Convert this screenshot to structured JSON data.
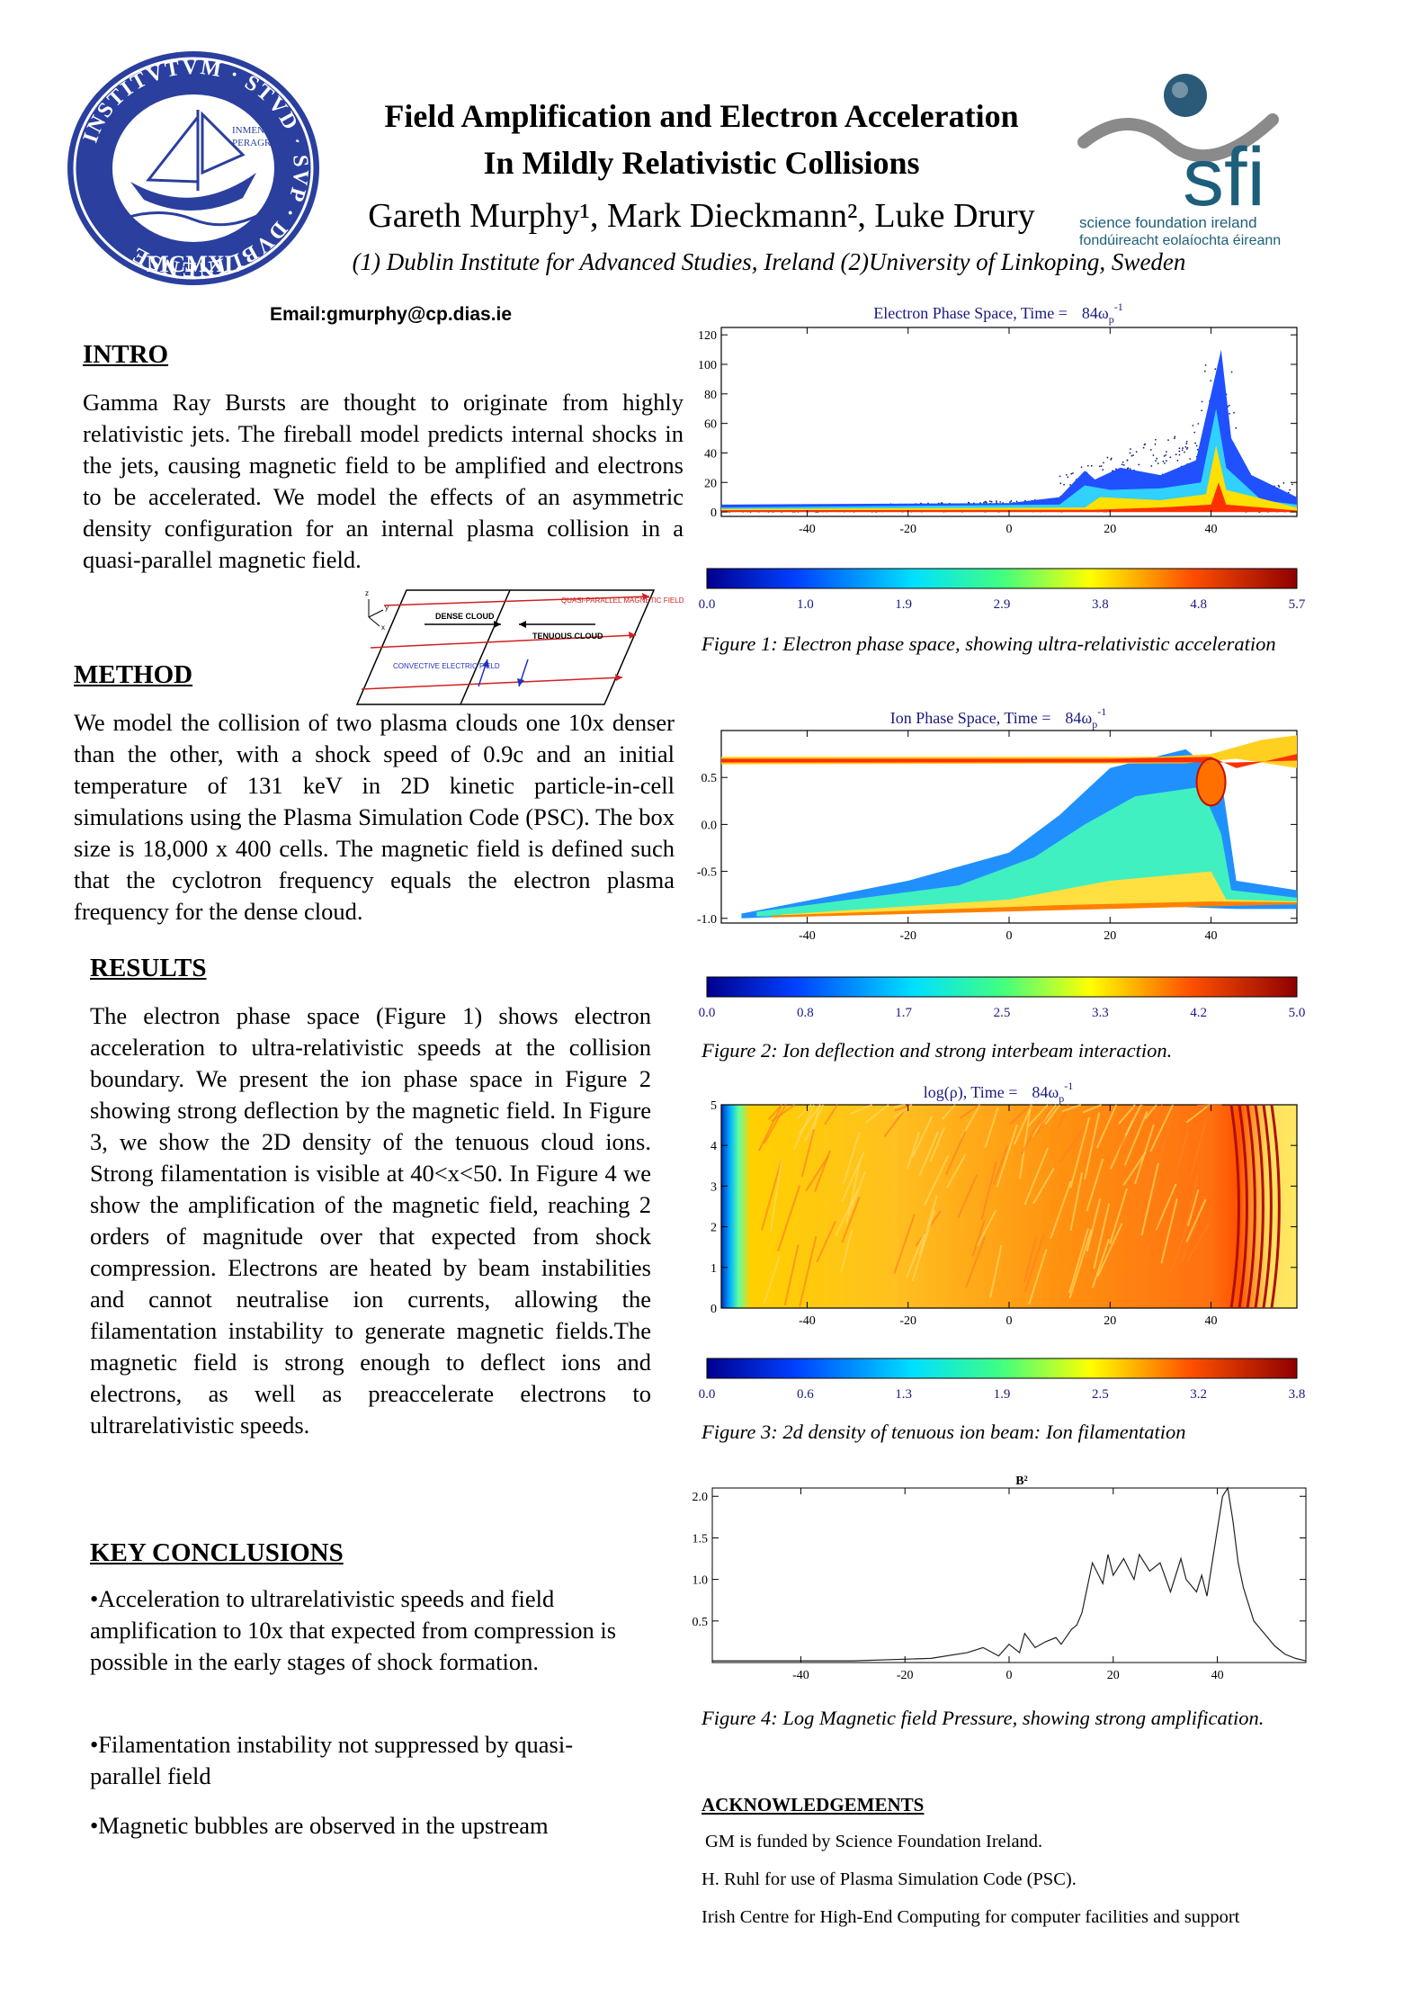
{
  "header": {
    "title_line1": "Field Amplification and Electron Acceleration",
    "title_line2": "In Mildly Relativistic Collisions",
    "authors": "Gareth Murphy¹, Mark Dieckmann², Luke Drury",
    "affiliations": "(1) Dublin Institute for Advanced Studies, Ireland (2)University of Linkoping, Sweden",
    "email": "Email:gmurphy@cp.dias.ie",
    "dias_seal": {
      "ring_text": "INSTITVTVM · STVD · SVP · DVBLINENSE",
      "inner_text": [
        "INMENSVM",
        "PERAGRAMVS"
      ],
      "year": "MCMXL"
    },
    "sfi_logo": {
      "wordmark": "sfi",
      "line1": "science foundation ireland",
      "line2": "fondúireacht eolaíochta éireann",
      "color": "#1d5f7a",
      "swoosh_color": "#8a8a8a"
    }
  },
  "intro": {
    "heading": "INTRO",
    "text": "Gamma Ray Bursts are thought to originate from highly relativistic jets. The fireball model predicts internal shocks in the jets, causing magnetic field to be amplified and electrons to be accelerated. We model the effects of an asymmetric density configuration for an internal plasma collision in a quasi-parallel magnetic field."
  },
  "diagram": {
    "labels": [
      "DENSE CLOUD",
      "TENUOUS CLOUD",
      "QUASI-PARALLEL MAGNETIC FIELD",
      "CONVECTIVE ELECTRIC FIELD"
    ],
    "axes": [
      "z",
      "y",
      "x"
    ]
  },
  "method": {
    "heading": "METHOD",
    "text": "We model the collision of two plasma clouds one 10x denser than the other, with a shock speed of 0.9c and an initial temperature of 131 keV in 2D kinetic particle-in-cell simulations using the Plasma Simulation Code (PSC). The box size is 18,000 x 400 cells. The magnetic field is defined such that the cyclotron frequency equals the electron plasma frequency for the dense cloud."
  },
  "results": {
    "heading": "RESULTS",
    "text": "The electron phase space (Figure 1) shows electron acceleration to ultra-relativistic speeds at the collision boundary. We present the ion phase space in Figure 2 showing strong deflection by the magnetic field. In Figure 3, we show the 2D density of the tenuous cloud ions. Strong filamentation is visible at 40<x<50. In Figure 4 we show the amplification of the magnetic field, reaching 2 orders of magnitude over that expected from shock compression. Electrons are heated by beam instabilities and cannot neutralise ion currents, allowing the filamentation instability to generate magnetic fields.The magnetic field is strong enough to deflect ions and electrons, as well as preaccelerate electrons to ultrarelativistic speeds."
  },
  "conclusions": {
    "heading": "KEY CONCLUSIONS",
    "items": [
      "•Acceleration to ultrarelativistic speeds and field amplification to 10x that expected from compression is possible in the early stages of shock formation.",
      "•Filamentation instability not suppressed by quasi-parallel field",
      "•Magnetic bubbles are observed in the upstream"
    ]
  },
  "figures": {
    "fig1": {
      "title": "Electron Phase Space, Time =",
      "time_value": "84ω",
      "time_sub": "p",
      "time_sup": "-1",
      "caption": "Figure 1: Electron phase space, showing ultra-relativistic acceleration",
      "colorbar": [
        "0.0",
        "1.0",
        "1.9",
        "2.9",
        "3.8",
        "4.8",
        "5.7"
      ]
    },
    "fig2": {
      "title": "Ion Phase Space, Time =",
      "time_value": "84ω",
      "time_sub": "p",
      "time_sup": "-1",
      "caption": "Figure 2: Ion deflection and strong interbeam interaction.",
      "colorbar": [
        "0.0",
        "0.8",
        "1.7",
        "2.5",
        "3.3",
        "4.2",
        "5.0"
      ]
    },
    "fig3": {
      "title": "log(ρ), Time =",
      "time_value": "84ω",
      "time_sub": "p",
      "time_sup": "-1",
      "caption": "Figure 3: 2d density of tenuous ion beam: Ion filamentation",
      "colorbar": [
        "0.0",
        "0.6",
        "1.3",
        "1.9",
        "2.5",
        "3.2",
        "3.8"
      ]
    },
    "fig4": {
      "title": "B²",
      "caption": "Figure 4: Log Magnetic field Pressure, showing strong amplification."
    }
  },
  "chart_data": [
    {
      "type": "heatmap",
      "title": "Electron Phase Space, Time = 84ωp-1",
      "x_ticks": [
        "-40",
        "-20",
        "0",
        "20",
        "40"
      ],
      "y_ticks": [
        "0",
        "20",
        "40",
        "60",
        "80",
        "100",
        "120"
      ],
      "xlim": [
        -57,
        57
      ],
      "ylim": [
        -3,
        125
      ],
      "colorbar": [
        0.0,
        1.0,
        1.9,
        2.9,
        3.8,
        4.8,
        5.7
      ]
    },
    {
      "type": "heatmap",
      "title": "Ion Phase Space, Time = 84ωp-1",
      "x_ticks": [
        "-40",
        "-20",
        "0",
        "20",
        "40"
      ],
      "y_ticks": [
        "-1.0",
        "-0.5",
        "0.0",
        "0.5"
      ],
      "xlim": [
        -57,
        57
      ],
      "ylim": [
        -1.05,
        1.0
      ],
      "colorbar": [
        0.0,
        0.8,
        1.7,
        2.5,
        3.3,
        4.2,
        5.0
      ]
    },
    {
      "type": "heatmap",
      "title": "log(ρ), Time = 84ωp-1",
      "x_ticks": [
        "-40",
        "-20",
        "0",
        "20",
        "40"
      ],
      "y_ticks": [
        "0",
        "1",
        "2",
        "3",
        "4",
        "5"
      ],
      "xlim": [
        -57,
        57
      ],
      "ylim": [
        0,
        5
      ],
      "colorbar": [
        0.0,
        0.6,
        1.3,
        1.9,
        2.5,
        3.2,
        3.8
      ]
    },
    {
      "type": "line",
      "title": "B²",
      "x_ticks": [
        "-40",
        "-20",
        "0",
        "20",
        "40"
      ],
      "y_ticks": [
        "0.5",
        "1.0",
        "1.5",
        "2.0"
      ],
      "xlim": [
        -57,
        57
      ],
      "ylim": [
        0,
        2.1
      ],
      "series": [
        {
          "x": [
            -57,
            -30,
            -15,
            -8,
            -5,
            -2,
            0,
            2,
            3,
            5,
            7,
            9,
            10,
            12,
            13,
            14,
            15,
            16,
            18,
            19,
            20,
            22,
            24,
            25,
            27,
            29,
            31,
            33,
            34,
            36,
            37,
            38,
            39,
            40,
            41,
            42,
            43,
            44,
            45,
            47,
            49,
            51,
            53,
            55,
            57
          ],
          "y": [
            0.02,
            0.02,
            0.05,
            0.12,
            0.18,
            0.08,
            0.22,
            0.12,
            0.35,
            0.18,
            0.25,
            0.3,
            0.22,
            0.4,
            0.45,
            0.6,
            0.9,
            1.2,
            0.95,
            1.3,
            1.05,
            1.25,
            1.0,
            1.3,
            1.1,
            1.2,
            0.85,
            1.25,
            1.0,
            0.85,
            1.05,
            0.8,
            1.2,
            1.6,
            2.0,
            2.1,
            1.7,
            1.2,
            0.9,
            0.5,
            0.35,
            0.2,
            0.1,
            0.05,
            0.02
          ]
        }
      ]
    }
  ],
  "acknowledgements": {
    "heading": "ACKNOWLEDGEMENTS",
    "items": [
      "GM is funded by Science Foundation Ireland.",
      "H. Ruhl for use of Plasma Simulation Code (PSC).",
      "Irish Centre for High-End Computing for computer facilities and support"
    ]
  }
}
